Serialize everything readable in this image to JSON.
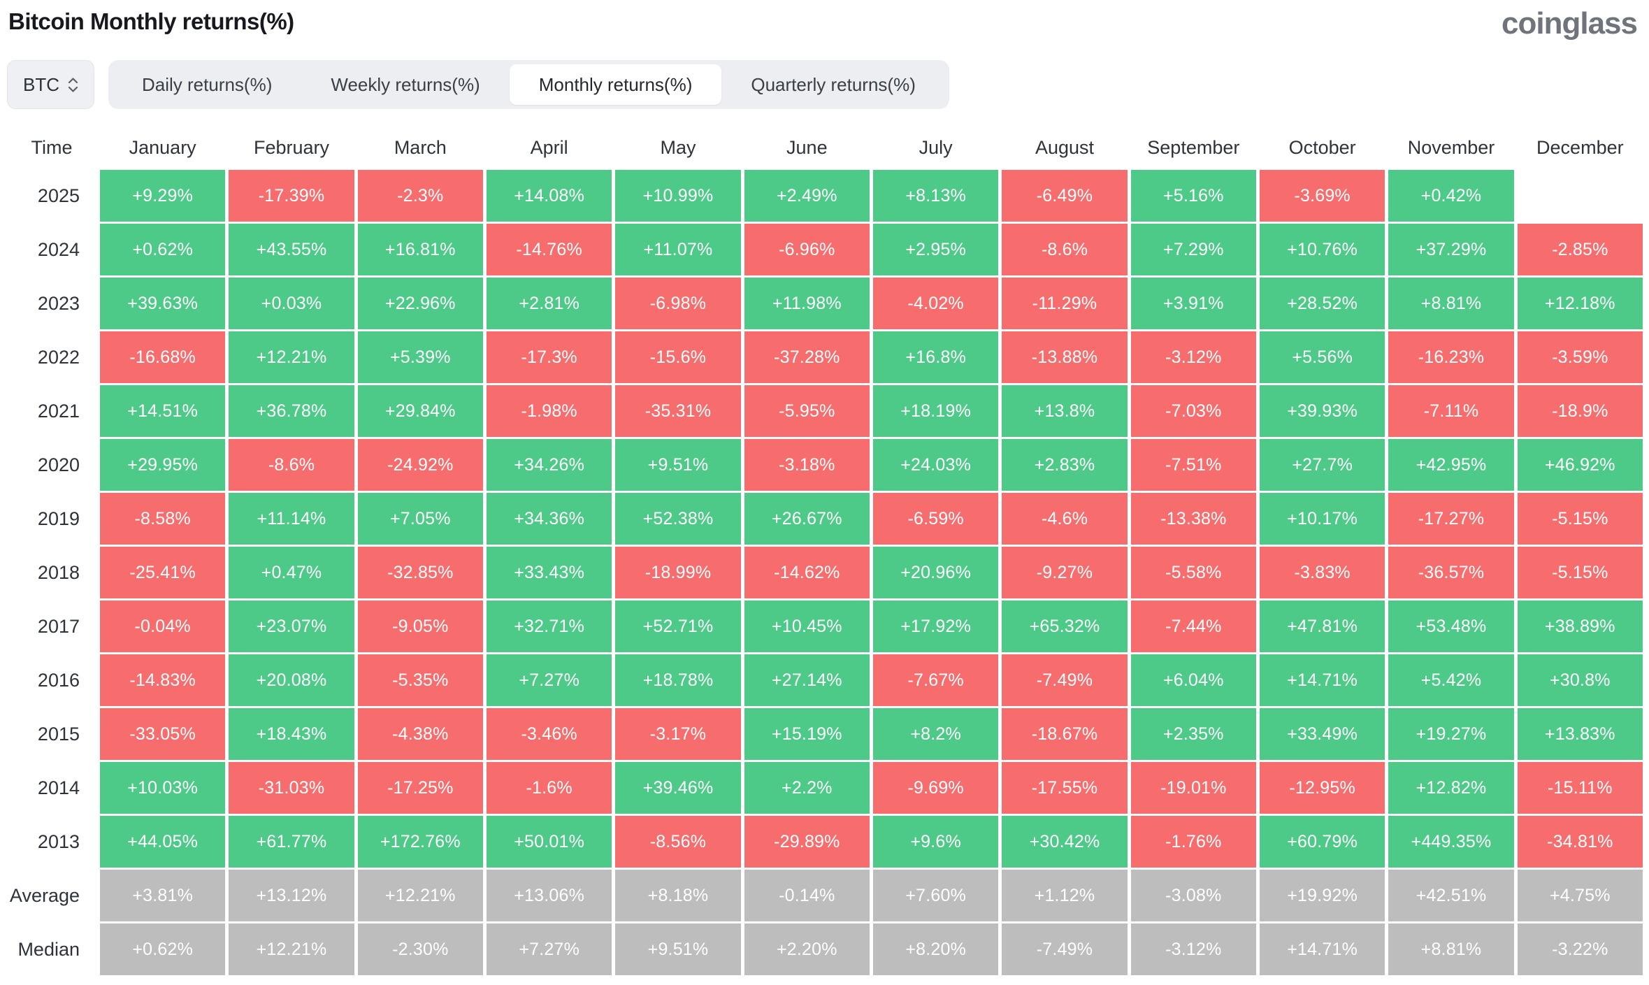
{
  "page": {
    "title": "Bitcoin Monthly returns(%)",
    "logo": "coinglass",
    "symbol": "BTC",
    "tabs": [
      {
        "label": "Daily returns(%)",
        "active": false
      },
      {
        "label": "Weekly returns(%)",
        "active": false
      },
      {
        "label": "Monthly returns(%)",
        "active": true
      },
      {
        "label": "Quarterly returns(%)",
        "active": false
      }
    ]
  },
  "colors": {
    "positive": "#4dca88",
    "negative": "#f76d6e",
    "neutral": "#bdbdbd",
    "header_text": "#2e333b"
  },
  "chart_data": {
    "type": "heatmap",
    "title": "Bitcoin Monthly returns(%)",
    "columns": [
      "Time",
      "January",
      "February",
      "March",
      "April",
      "May",
      "June",
      "July",
      "August",
      "September",
      "October",
      "November",
      "December"
    ],
    "rows": [
      {
        "label": "2025",
        "kind": "year",
        "values": [
          "+9.29%",
          "-17.39%",
          "-2.3%",
          "+14.08%",
          "+10.99%",
          "+2.49%",
          "+8.13%",
          "-6.49%",
          "+5.16%",
          "-3.69%",
          "+0.42%",
          ""
        ]
      },
      {
        "label": "2024",
        "kind": "year",
        "values": [
          "+0.62%",
          "+43.55%",
          "+16.81%",
          "-14.76%",
          "+11.07%",
          "-6.96%",
          "+2.95%",
          "-8.6%",
          "+7.29%",
          "+10.76%",
          "+37.29%",
          "-2.85%"
        ]
      },
      {
        "label": "2023",
        "kind": "year",
        "values": [
          "+39.63%",
          "+0.03%",
          "+22.96%",
          "+2.81%",
          "-6.98%",
          "+11.98%",
          "-4.02%",
          "-11.29%",
          "+3.91%",
          "+28.52%",
          "+8.81%",
          "+12.18%"
        ]
      },
      {
        "label": "2022",
        "kind": "year",
        "values": [
          "-16.68%",
          "+12.21%",
          "+5.39%",
          "-17.3%",
          "-15.6%",
          "-37.28%",
          "+16.8%",
          "-13.88%",
          "-3.12%",
          "+5.56%",
          "-16.23%",
          "-3.59%"
        ]
      },
      {
        "label": "2021",
        "kind": "year",
        "values": [
          "+14.51%",
          "+36.78%",
          "+29.84%",
          "-1.98%",
          "-35.31%",
          "-5.95%",
          "+18.19%",
          "+13.8%",
          "-7.03%",
          "+39.93%",
          "-7.11%",
          "-18.9%"
        ]
      },
      {
        "label": "2020",
        "kind": "year",
        "values": [
          "+29.95%",
          "-8.6%",
          "-24.92%",
          "+34.26%",
          "+9.51%",
          "-3.18%",
          "+24.03%",
          "+2.83%",
          "-7.51%",
          "+27.7%",
          "+42.95%",
          "+46.92%"
        ]
      },
      {
        "label": "2019",
        "kind": "year",
        "values": [
          "-8.58%",
          "+11.14%",
          "+7.05%",
          "+34.36%",
          "+52.38%",
          "+26.67%",
          "-6.59%",
          "-4.6%",
          "-13.38%",
          "+10.17%",
          "-17.27%",
          "-5.15%"
        ]
      },
      {
        "label": "2018",
        "kind": "year",
        "values": [
          "-25.41%",
          "+0.47%",
          "-32.85%",
          "+33.43%",
          "-18.99%",
          "-14.62%",
          "+20.96%",
          "-9.27%",
          "-5.58%",
          "-3.83%",
          "-36.57%",
          "-5.15%"
        ]
      },
      {
        "label": "2017",
        "kind": "year",
        "values": [
          "-0.04%",
          "+23.07%",
          "-9.05%",
          "+32.71%",
          "+52.71%",
          "+10.45%",
          "+17.92%",
          "+65.32%",
          "-7.44%",
          "+47.81%",
          "+53.48%",
          "+38.89%"
        ]
      },
      {
        "label": "2016",
        "kind": "year",
        "values": [
          "-14.83%",
          "+20.08%",
          "-5.35%",
          "+7.27%",
          "+18.78%",
          "+27.14%",
          "-7.67%",
          "-7.49%",
          "+6.04%",
          "+14.71%",
          "+5.42%",
          "+30.8%"
        ]
      },
      {
        "label": "2015",
        "kind": "year",
        "values": [
          "-33.05%",
          "+18.43%",
          "-4.38%",
          "-3.46%",
          "-3.17%",
          "+15.19%",
          "+8.2%",
          "-18.67%",
          "+2.35%",
          "+33.49%",
          "+19.27%",
          "+13.83%"
        ]
      },
      {
        "label": "2014",
        "kind": "year",
        "values": [
          "+10.03%",
          "-31.03%",
          "-17.25%",
          "-1.6%",
          "+39.46%",
          "+2.2%",
          "-9.69%",
          "-17.55%",
          "-19.01%",
          "-12.95%",
          "+12.82%",
          "-15.11%"
        ]
      },
      {
        "label": "2013",
        "kind": "year",
        "values": [
          "+44.05%",
          "+61.77%",
          "+172.76%",
          "+50.01%",
          "-8.56%",
          "-29.89%",
          "+9.6%",
          "+30.42%",
          "-1.76%",
          "+60.79%",
          "+449.35%",
          "-34.81%"
        ]
      },
      {
        "label": "Average",
        "kind": "summary",
        "values": [
          "+3.81%",
          "+13.12%",
          "+12.21%",
          "+13.06%",
          "+8.18%",
          "-0.14%",
          "+7.60%",
          "+1.12%",
          "-3.08%",
          "+19.92%",
          "+42.51%",
          "+4.75%"
        ]
      },
      {
        "label": "Median",
        "kind": "summary",
        "values": [
          "+0.62%",
          "+12.21%",
          "-2.30%",
          "+7.27%",
          "+9.51%",
          "+2.20%",
          "+8.20%",
          "-7.49%",
          "-3.12%",
          "+14.71%",
          "+8.81%",
          "-3.22%"
        ]
      }
    ]
  }
}
